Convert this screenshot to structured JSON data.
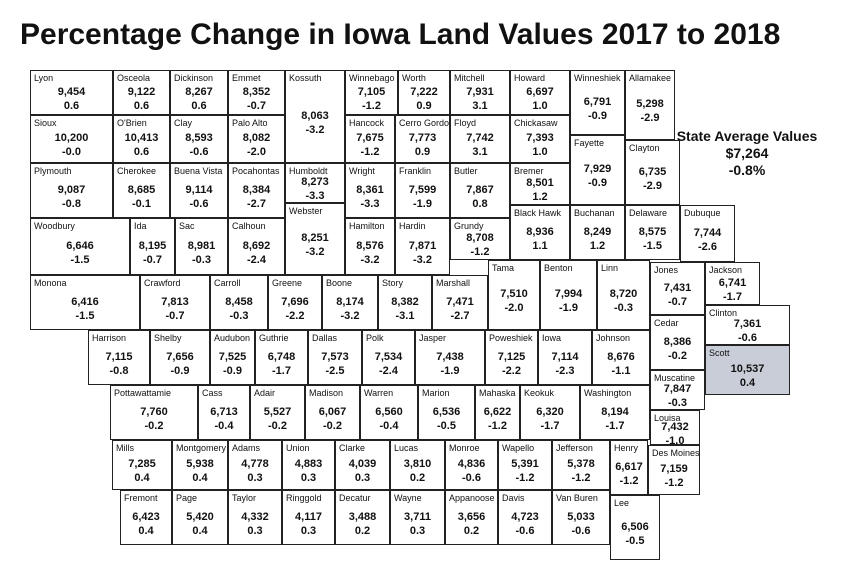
{
  "title": "Percentage Change in Iowa Land Values 2017 to 2018",
  "state_average": {
    "label": "State Average Values",
    "value": "$7,264",
    "change": "-0.8%"
  },
  "counties": [
    {
      "name": "Lyon",
      "value": "9,454",
      "change": "0.6"
    },
    {
      "name": "Osceola",
      "value": "9,122",
      "change": "0.6"
    },
    {
      "name": "Dickinson",
      "value": "8,267",
      "change": "0.6"
    },
    {
      "name": "Emmet",
      "value": "8,352",
      "change": "-0.7"
    },
    {
      "name": "Kossuth",
      "value": "8,063",
      "change": "-3.2"
    },
    {
      "name": "Winnebago",
      "value": "7,105",
      "change": "-1.2"
    },
    {
      "name": "Worth",
      "value": "7,222",
      "change": "0.9"
    },
    {
      "name": "Mitchell",
      "value": "7,931",
      "change": "3.1"
    },
    {
      "name": "Howard",
      "value": "6,697",
      "change": "1.0"
    },
    {
      "name": "Winneshiek",
      "value": "6,791",
      "change": "-0.9"
    },
    {
      "name": "Allamakee",
      "value": "5,298",
      "change": "-2.9"
    },
    {
      "name": "Sioux",
      "value": "10,200",
      "change": "-0.0"
    },
    {
      "name": "O'Brien",
      "value": "10,413",
      "change": "0.6"
    },
    {
      "name": "Clay",
      "value": "8,593",
      "change": "-0.6"
    },
    {
      "name": "Palo Alto",
      "value": "8,082",
      "change": "-2.0"
    },
    {
      "name": "Hancock",
      "value": "7,675",
      "change": "-1.2"
    },
    {
      "name": "Cerro Gordo",
      "value": "7,773",
      "change": "0.9"
    },
    {
      "name": "Floyd",
      "value": "7,742",
      "change": "3.1"
    },
    {
      "name": "Chickasaw",
      "value": "7,393",
      "change": "1.0"
    },
    {
      "name": "Fayette",
      "value": "7,929",
      "change": "-0.9"
    },
    {
      "name": "Clayton",
      "value": "6,735",
      "change": "-2.9"
    },
    {
      "name": "Plymouth",
      "value": "9,087",
      "change": "-0.8"
    },
    {
      "name": "Cherokee",
      "value": "8,685",
      "change": "-0.1"
    },
    {
      "name": "Buena Vista",
      "value": "9,114",
      "change": "-0.6"
    },
    {
      "name": "Pocahontas",
      "value": "8,384",
      "change": "-2.7"
    },
    {
      "name": "Humboldt",
      "value": "8,273",
      "change": "-3.3"
    },
    {
      "name": "Wright",
      "value": "8,361",
      "change": "-3.3"
    },
    {
      "name": "Franklin",
      "value": "7,599",
      "change": "-1.9"
    },
    {
      "name": "Butler",
      "value": "7,867",
      "change": "0.8"
    },
    {
      "name": "Bremer",
      "value": "8,501",
      "change": "1.2"
    },
    {
      "name": "Webster",
      "value": "8,251",
      "change": "-3.2"
    },
    {
      "name": "Hamilton",
      "value": "8,576",
      "change": "-3.2"
    },
    {
      "name": "Hardin",
      "value": "7,871",
      "change": "-3.2"
    },
    {
      "name": "Grundy",
      "value": "8,708",
      "change": "-1.2"
    },
    {
      "name": "Black Hawk",
      "value": "8,936",
      "change": "1.1"
    },
    {
      "name": "Buchanan",
      "value": "8,249",
      "change": "1.2"
    },
    {
      "name": "Delaware",
      "value": "8,575",
      "change": "-1.5"
    },
    {
      "name": "Dubuque",
      "value": "7,744",
      "change": "-2.6"
    },
    {
      "name": "Woodbury",
      "value": "6,646",
      "change": "-1.5"
    },
    {
      "name": "Ida",
      "value": "8,195",
      "change": "-0.7"
    },
    {
      "name": "Sac",
      "value": "8,981",
      "change": "-0.3"
    },
    {
      "name": "Calhoun",
      "value": "8,692",
      "change": "-2.4"
    },
    {
      "name": "Monona",
      "value": "6,416",
      "change": "-1.5"
    },
    {
      "name": "Crawford",
      "value": "7,813",
      "change": "-0.7"
    },
    {
      "name": "Carroll",
      "value": "8,458",
      "change": "-0.3"
    },
    {
      "name": "Greene",
      "value": "7,696",
      "change": "-2.2"
    },
    {
      "name": "Boone",
      "value": "8,174",
      "change": "-3.2"
    },
    {
      "name": "Story",
      "value": "8,382",
      "change": "-3.1"
    },
    {
      "name": "Marshall",
      "value": "7,471",
      "change": "-2.7"
    },
    {
      "name": "Tama",
      "value": "7,510",
      "change": "-2.0"
    },
    {
      "name": "Benton",
      "value": "7,994",
      "change": "-1.9"
    },
    {
      "name": "Linn",
      "value": "8,720",
      "change": "-0.3"
    },
    {
      "name": "Jones",
      "value": "7,431",
      "change": "-0.7"
    },
    {
      "name": "Jackson",
      "value": "6,741",
      "change": "-1.7"
    },
    {
      "name": "Clinton",
      "value": "7,361",
      "change": "-0.6"
    },
    {
      "name": "Cedar",
      "value": "8,386",
      "change": "-0.2"
    },
    {
      "name": "Scott",
      "value": "10,537",
      "change": "0.4"
    },
    {
      "name": "Harrison",
      "value": "7,115",
      "change": "-0.8"
    },
    {
      "name": "Shelby",
      "value": "7,656",
      "change": "-0.9"
    },
    {
      "name": "Audubon",
      "value": "7,525",
      "change": "-0.9"
    },
    {
      "name": "Guthrie",
      "value": "6,748",
      "change": "-1.7"
    },
    {
      "name": "Dallas",
      "value": "7,573",
      "change": "-2.5"
    },
    {
      "name": "Polk",
      "value": "7,534",
      "change": "-2.4"
    },
    {
      "name": "Jasper",
      "value": "7,438",
      "change": "-1.9"
    },
    {
      "name": "Poweshiek",
      "value": "7,125",
      "change": "-2.2"
    },
    {
      "name": "Iowa",
      "value": "7,114",
      "change": "-2.3"
    },
    {
      "name": "Johnson",
      "value": "8,676",
      "change": "-1.1"
    },
    {
      "name": "Muscatine",
      "value": "7,847",
      "change": "-0.3"
    },
    {
      "name": "Pottawattamie",
      "value": "7,760",
      "change": "-0.2"
    },
    {
      "name": "Cass",
      "value": "6,713",
      "change": "-0.4"
    },
    {
      "name": "Adair",
      "value": "5,527",
      "change": "-0.2"
    },
    {
      "name": "Madison",
      "value": "6,067",
      "change": "-0.2"
    },
    {
      "name": "Warren",
      "value": "6,560",
      "change": "-0.4"
    },
    {
      "name": "Marion",
      "value": "6,536",
      "change": "-0.5"
    },
    {
      "name": "Mahaska",
      "value": "6,622",
      "change": "-1.2"
    },
    {
      "name": "Keokuk",
      "value": "6,320",
      "change": "-1.7"
    },
    {
      "name": "Washington",
      "value": "8,194",
      "change": "-1.7"
    },
    {
      "name": "Louisa",
      "value": "7,432",
      "change": "-1.0"
    },
    {
      "name": "Mills",
      "value": "7,285",
      "change": "0.4"
    },
    {
      "name": "Montgomery",
      "value": "5,938",
      "change": "0.4"
    },
    {
      "name": "Adams",
      "value": "4,778",
      "change": "0.3"
    },
    {
      "name": "Union",
      "value": "4,883",
      "change": "0.3"
    },
    {
      "name": "Clarke",
      "value": "4,039",
      "change": "0.3"
    },
    {
      "name": "Lucas",
      "value": "3,810",
      "change": "0.2"
    },
    {
      "name": "Monroe",
      "value": "4,836",
      "change": "-0.6"
    },
    {
      "name": "Wapello",
      "value": "5,391",
      "change": "-1.2"
    },
    {
      "name": "Jefferson",
      "value": "5,378",
      "change": "-1.2"
    },
    {
      "name": "Henry",
      "value": "6,617",
      "change": "-1.2"
    },
    {
      "name": "Des Moines",
      "value": "7,159",
      "change": "-1.2"
    },
    {
      "name": "Fremont",
      "value": "6,423",
      "change": "0.4"
    },
    {
      "name": "Page",
      "value": "5,420",
      "change": "0.4"
    },
    {
      "name": "Taylor",
      "value": "4,332",
      "change": "0.3"
    },
    {
      "name": "Ringgold",
      "value": "4,117",
      "change": "0.3"
    },
    {
      "name": "Decatur",
      "value": "3,488",
      "change": "0.2"
    },
    {
      "name": "Wayne",
      "value": "3,711",
      "change": "0.3"
    },
    {
      "name": "Appanoose",
      "value": "3,656",
      "change": "0.2"
    },
    {
      "name": "Davis",
      "value": "4,723",
      "change": "-0.6"
    },
    {
      "name": "Van Buren",
      "value": "5,033",
      "change": "-0.6"
    },
    {
      "name": "Lee",
      "value": "6,506",
      "change": "-0.5"
    }
  ]
}
